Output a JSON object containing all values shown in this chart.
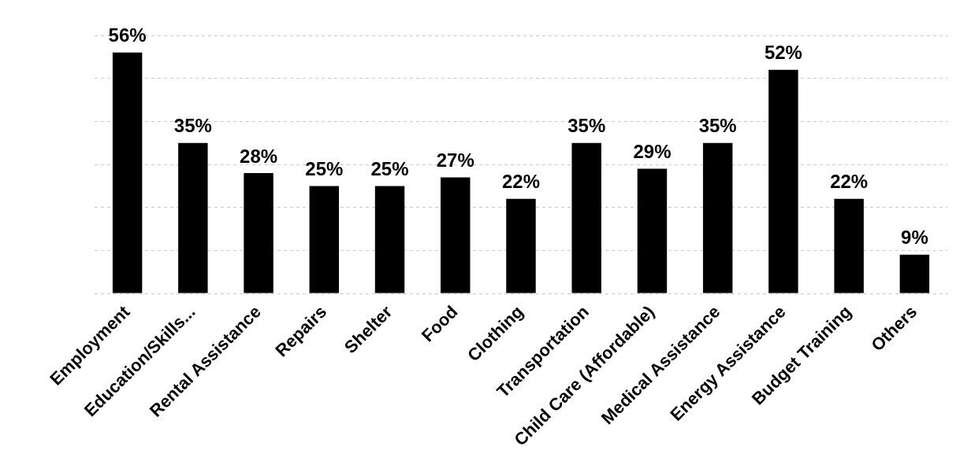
{
  "chart_data": {
    "type": "bar",
    "categories": [
      "Employment",
      "Education/Skills...",
      "Rental Assistance",
      "Repairs",
      "Shelter",
      "Food",
      "Clothing",
      "Transportation",
      "Child Care (Affordable)",
      "Medical Assistance",
      "Energy Assistance",
      "Budget Training",
      "Others"
    ],
    "values": [
      56,
      35,
      28,
      25,
      25,
      27,
      22,
      35,
      29,
      35,
      52,
      22,
      9
    ],
    "value_labels": [
      "56%",
      "35%",
      "28%",
      "25%",
      "25%",
      "27%",
      "22%",
      "35%",
      "29%",
      "35%",
      "52%",
      "22%",
      "9%"
    ],
    "color": "#000000",
    "ylim": [
      0,
      60
    ],
    "yticks": [
      {
        "value": 0,
        "label": null
      },
      {
        "value": 10,
        "label": null
      },
      {
        "value": 20,
        "label": null
      },
      {
        "value": 30,
        "label": null
      },
      {
        "value": 40,
        "label": null
      },
      {
        "value": 50,
        "label": null
      },
      {
        "value": 60,
        "label": null
      }
    ],
    "grid": "y",
    "tick_labels": "x"
  }
}
